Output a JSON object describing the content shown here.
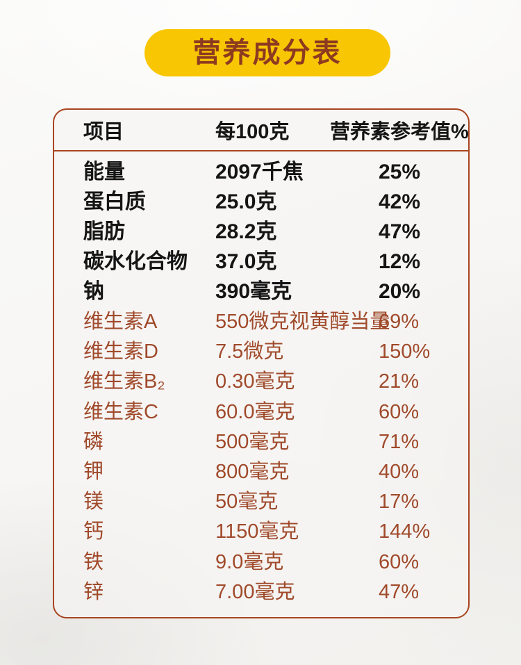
{
  "badge": {
    "label": "营养成分表"
  },
  "colors": {
    "page_bg": "#FAFAF8",
    "badge_bg": "#F8C602",
    "badge_text": "#8D3A21",
    "table_border": "#A8441F",
    "black_text": "#151515",
    "brown_text": "#A04A2B"
  },
  "table": {
    "headers": [
      "项目",
      "每100克",
      "营养素参考值%"
    ],
    "rows": [
      {
        "item": "能量",
        "per_100g": "2097千焦",
        "nrv": "25%",
        "group": "black"
      },
      {
        "item": "蛋白质",
        "per_100g": "25.0克",
        "nrv": "42%",
        "group": "black"
      },
      {
        "item": "脂肪",
        "per_100g": "28.2克",
        "nrv": "47%",
        "group": "black"
      },
      {
        "item": "碳水化合物",
        "per_100g": "37.0克",
        "nrv": "12%",
        "group": "black"
      },
      {
        "item": "钠",
        "per_100g": "390毫克",
        "nrv": "20%",
        "group": "black"
      },
      {
        "item": "维生素A",
        "per_100g": "550微克视黄醇当量",
        "nrv": "69%",
        "group": "brown"
      },
      {
        "item": "维生素D",
        "per_100g": "7.5微克",
        "nrv": "150%",
        "group": "brown"
      },
      {
        "item": "维生素B₂",
        "per_100g": "0.30毫克",
        "nrv": "21%",
        "group": "brown"
      },
      {
        "item": "维生素C",
        "per_100g": "60.0毫克",
        "nrv": "60%",
        "group": "brown"
      },
      {
        "item": "磷",
        "per_100g": "500毫克",
        "nrv": "71%",
        "group": "brown"
      },
      {
        "item": "钾",
        "per_100g": "800毫克",
        "nrv": "40%",
        "group": "brown"
      },
      {
        "item": "镁",
        "per_100g": "50毫克",
        "nrv": "17%",
        "group": "brown"
      },
      {
        "item": "钙",
        "per_100g": "1150毫克",
        "nrv": "144%",
        "group": "brown"
      },
      {
        "item": "铁",
        "per_100g": "9.0毫克",
        "nrv": "60%",
        "group": "brown"
      },
      {
        "item": "锌",
        "per_100g": "7.00毫克",
        "nrv": "47%",
        "group": "brown"
      }
    ]
  }
}
